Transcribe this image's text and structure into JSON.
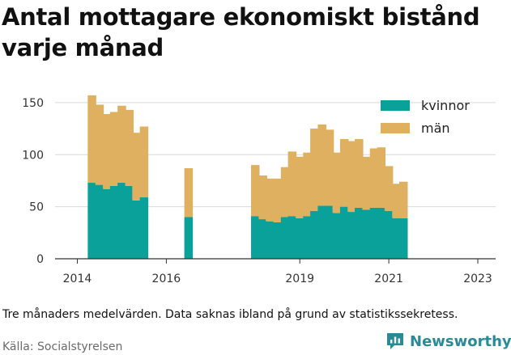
{
  "title": "Antal mottagare ekonomiskt bistånd varje månad",
  "caption": "Tre månaders medelvärden. Data saknas ibland på grund av statistikssekretess.",
  "source": "Källa: Socialstyrelsen",
  "brand": {
    "name": "Newsworthy",
    "icon": "newsworthy-logo-icon",
    "color": "#2a8a96"
  },
  "colors": {
    "kvinnor": "#0aa19a",
    "man": "#deb060",
    "grid": "#d9d9d9",
    "axis": "#333333"
  },
  "chart_data": {
    "type": "bar",
    "stacked": true,
    "title": "Antal mottagare ekonomiskt bistånd varje månad",
    "xlabel": "",
    "ylabel": "",
    "ylim": [
      0,
      160
    ],
    "yticks": [
      0,
      50,
      100,
      150
    ],
    "xticks": [
      2014,
      2016,
      2019,
      2021,
      2023
    ],
    "xlim": [
      2013.5,
      2023.4
    ],
    "grid": true,
    "legend_position": "top-right",
    "x": [
      2014.33,
      2014.5,
      2014.67,
      2014.83,
      2015.0,
      2015.17,
      2015.33,
      2015.5,
      2016.5,
      2018.0,
      2018.17,
      2018.33,
      2018.5,
      2018.67,
      2018.83,
      2019.0,
      2019.17,
      2019.33,
      2019.5,
      2019.67,
      2019.83,
      2020.0,
      2020.17,
      2020.33,
      2020.5,
      2020.67,
      2020.83,
      2021.0,
      2021.17,
      2021.33,
      2021.5,
      2021.67,
      2021.83,
      2022.0,
      2022.17,
      2022.33,
      2022.5,
      2022.67,
      2022.83,
      2023.0
    ],
    "series": [
      {
        "name": "kvinnor",
        "values": [
          73,
          71,
          67,
          70,
          73,
          70,
          56,
          59,
          40,
          41,
          38,
          36,
          35,
          40,
          41,
          39,
          41,
          46,
          51,
          51,
          44,
          50,
          45,
          49,
          47,
          49,
          49,
          46,
          39,
          39,
          0,
          0,
          0,
          0,
          0,
          0,
          0,
          0,
          0,
          0
        ]
      },
      {
        "name": "män",
        "values": [
          84,
          77,
          72,
          71,
          74,
          73,
          65,
          68,
          47,
          49,
          42,
          41,
          42,
          48,
          62,
          59,
          61,
          79,
          78,
          73,
          58,
          65,
          68,
          66,
          51,
          57,
          58,
          43,
          33,
          35,
          0,
          0,
          0,
          0,
          0,
          0,
          0,
          0,
          0,
          0
        ]
      }
    ]
  }
}
